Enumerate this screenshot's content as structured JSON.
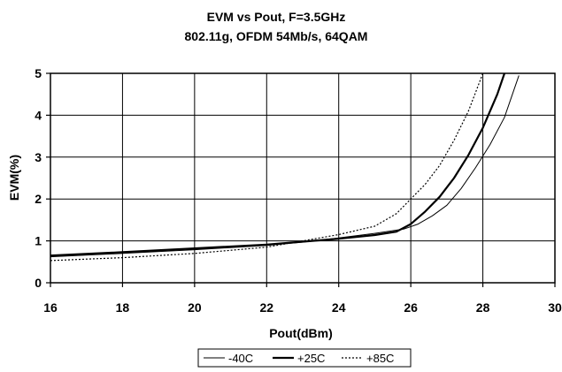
{
  "chart_data": {
    "type": "line",
    "title": "EVM vs Pout, F=3.5GHz",
    "subtitle": "802.11g, OFDM 54Mb/s, 64QAM",
    "xlabel": "Pout(dBm)",
    "ylabel": "EVM(%)",
    "xlim": [
      16,
      30
    ],
    "ylim": [
      0,
      5
    ],
    "xticks": [
      16,
      18,
      20,
      22,
      24,
      26,
      28,
      30
    ],
    "xtick_labels": [
      "16",
      "18",
      "20",
      "22",
      "24",
      "26",
      "28",
      "30"
    ],
    "yticks": [
      0,
      1,
      2,
      3,
      4,
      5
    ],
    "ytick_labels": [
      "0",
      "1",
      "2",
      "3",
      "4",
      "5"
    ],
    "grid": true,
    "legend_position": "bottom-center",
    "series": [
      {
        "name": "-40C",
        "style": "thin-solid",
        "color": "#000000",
        "x": [
          16,
          18,
          20,
          22,
          23,
          24,
          25,
          25.8,
          26.2,
          26.6,
          27.0,
          27.4,
          27.8,
          28.2,
          28.6,
          29.0
        ],
        "y": [
          0.62,
          0.7,
          0.79,
          0.89,
          0.97,
          1.07,
          1.18,
          1.28,
          1.4,
          1.6,
          1.85,
          2.25,
          2.75,
          3.3,
          3.95,
          4.95
        ]
      },
      {
        "name": "+25C",
        "style": "thick-solid",
        "color": "#000000",
        "x": [
          16,
          18,
          20,
          22,
          23,
          24,
          25,
          25.6,
          26.0,
          26.4,
          26.8,
          27.2,
          27.6,
          28.0,
          28.4,
          28.6
        ],
        "y": [
          0.65,
          0.73,
          0.82,
          0.91,
          0.98,
          1.05,
          1.14,
          1.22,
          1.4,
          1.7,
          2.05,
          2.5,
          3.05,
          3.7,
          4.5,
          5.0
        ]
      },
      {
        "name": "+85C",
        "style": "dotted",
        "color": "#000000",
        "x": [
          16,
          18,
          20,
          22,
          23,
          24,
          25,
          25.6,
          26.0,
          26.4,
          26.8,
          27.2,
          27.6,
          28.0
        ],
        "y": [
          0.53,
          0.6,
          0.7,
          0.85,
          1.0,
          1.15,
          1.35,
          1.65,
          2.0,
          2.35,
          2.8,
          3.4,
          4.1,
          5.0
        ]
      }
    ]
  }
}
